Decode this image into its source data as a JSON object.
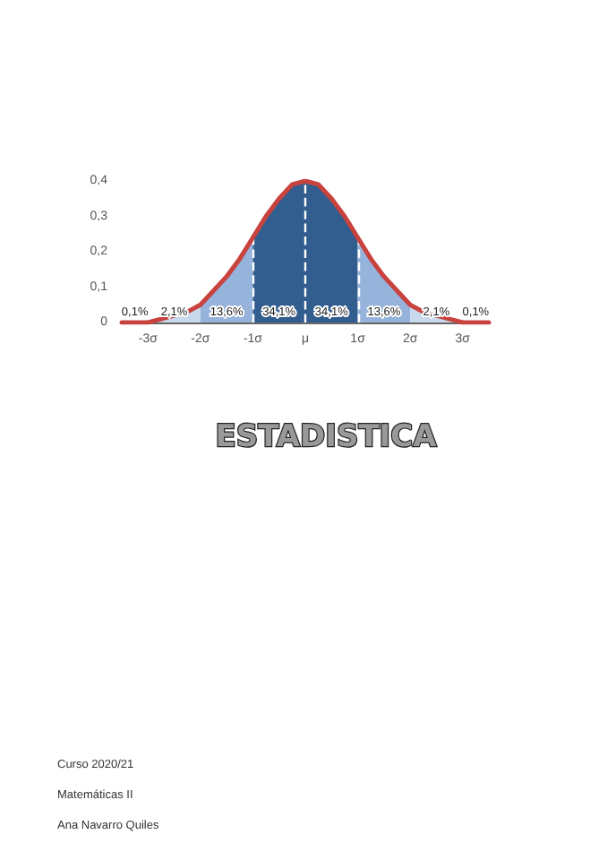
{
  "chart_data": {
    "type": "area",
    "title": "ESTADISTICA",
    "xlim": [
      -3.5,
      3.5
    ],
    "ylim": [
      0,
      0.4
    ],
    "xticks": [
      {
        "value": -3,
        "label": "-3σ"
      },
      {
        "value": -2,
        "label": "-2σ"
      },
      {
        "value": -1,
        "label": "-1σ"
      },
      {
        "value": 0,
        "label": "μ"
      },
      {
        "value": 1,
        "label": "1σ"
      },
      {
        "value": 2,
        "label": "2σ"
      },
      {
        "value": 3,
        "label": "3σ"
      }
    ],
    "yticks": [
      0,
      {
        "value": 0.1,
        "label": "0,1"
      },
      {
        "value": 0.2,
        "label": "0,2"
      },
      {
        "value": 0.3,
        "label": "0,3"
      },
      {
        "value": 0.4,
        "label": "0,4"
      }
    ],
    "grid": false,
    "marker": "none",
    "series": [
      {
        "color": "#c9d8ec",
        "x": [
          -3,
          -2.75,
          -2.5,
          -2.25,
          -2
        ],
        "values": [
          0.0,
          0.01,
          0.02,
          0.03,
          0.05
        ]
      },
      {
        "color": "#95b3db",
        "x": [
          -2,
          -1.75,
          -1.5,
          -1.25,
          -1
        ],
        "values": [
          0.05,
          0.09,
          0.13,
          0.18,
          0.24
        ]
      },
      {
        "color": "#325d8f",
        "x": [
          -1,
          -0.75,
          -0.5,
          -0.25,
          0,
          0.25,
          0.5,
          0.75,
          1
        ],
        "values": [
          0.24,
          0.3,
          0.35,
          0.39,
          0.4,
          0.39,
          0.35,
          0.3,
          0.24
        ]
      },
      {
        "color": "#95b3db",
        "x": [
          1,
          1.25,
          1.5,
          1.75,
          2
        ],
        "values": [
          0.24,
          0.18,
          0.13,
          0.09,
          0.05
        ]
      },
      {
        "color": "#c9d8ec",
        "x": [
          2,
          2.25,
          2.5,
          2.75,
          3
        ],
        "values": [
          0.05,
          0.03,
          0.02,
          0.01,
          0.0
        ]
      },
      {
        "type": "line",
        "color": "#c8423e",
        "line_style": "solid",
        "x": [
          -3.5,
          -3.25,
          -3,
          -2.75,
          -2.5,
          -2.25,
          -2,
          -1.75,
          -1.5,
          -1.25,
          -1,
          -0.75,
          -0.5,
          -0.25,
          0,
          0.25,
          0.5,
          0.75,
          1,
          1.25,
          1.5,
          1.75,
          2,
          2.25,
          2.5,
          2.75,
          3,
          3.25,
          3.5
        ],
        "values": [
          0.0,
          0.0,
          0.0,
          0.01,
          0.02,
          0.03,
          0.05,
          0.09,
          0.13,
          0.18,
          0.24,
          0.3,
          0.35,
          0.39,
          0.4,
          0.39,
          0.35,
          0.3,
          0.24,
          0.18,
          0.13,
          0.09,
          0.05,
          0.03,
          0.02,
          0.01,
          0.0,
          0.0,
          0.0
        ]
      }
    ],
    "ref_lines": [
      {
        "axis": "x",
        "value": -1,
        "color": "#ffffff",
        "line_style": "dashed"
      },
      {
        "axis": "x",
        "value": 0,
        "color": "#ffffff",
        "line_style": "dashed"
      },
      {
        "axis": "x",
        "value": 1,
        "color": "#ffffff",
        "line_style": "dashed"
      }
    ],
    "annotations": [
      {
        "text": "0,1%",
        "x": -3.25,
        "y": 0.01
      },
      {
        "text": "2,1%",
        "x": -2.5,
        "y": 0.01
      },
      {
        "text": "13,6%",
        "x": -1.5,
        "y": 0.01
      },
      {
        "text": "34,1%",
        "x": -0.5,
        "y": 0.01
      },
      {
        "text": "34,1%",
        "x": 0.5,
        "y": 0.01
      },
      {
        "text": "13,6%",
        "x": 1.5,
        "y": 0.01
      },
      {
        "text": "2,1%",
        "x": 2.5,
        "y": 0.01
      },
      {
        "text": "0,1%",
        "x": 3.25,
        "y": 0.01
      },
      "Curso 2020/21",
      "Matemáticas II",
      "Ana Navarro Quiles"
    ]
  }
}
